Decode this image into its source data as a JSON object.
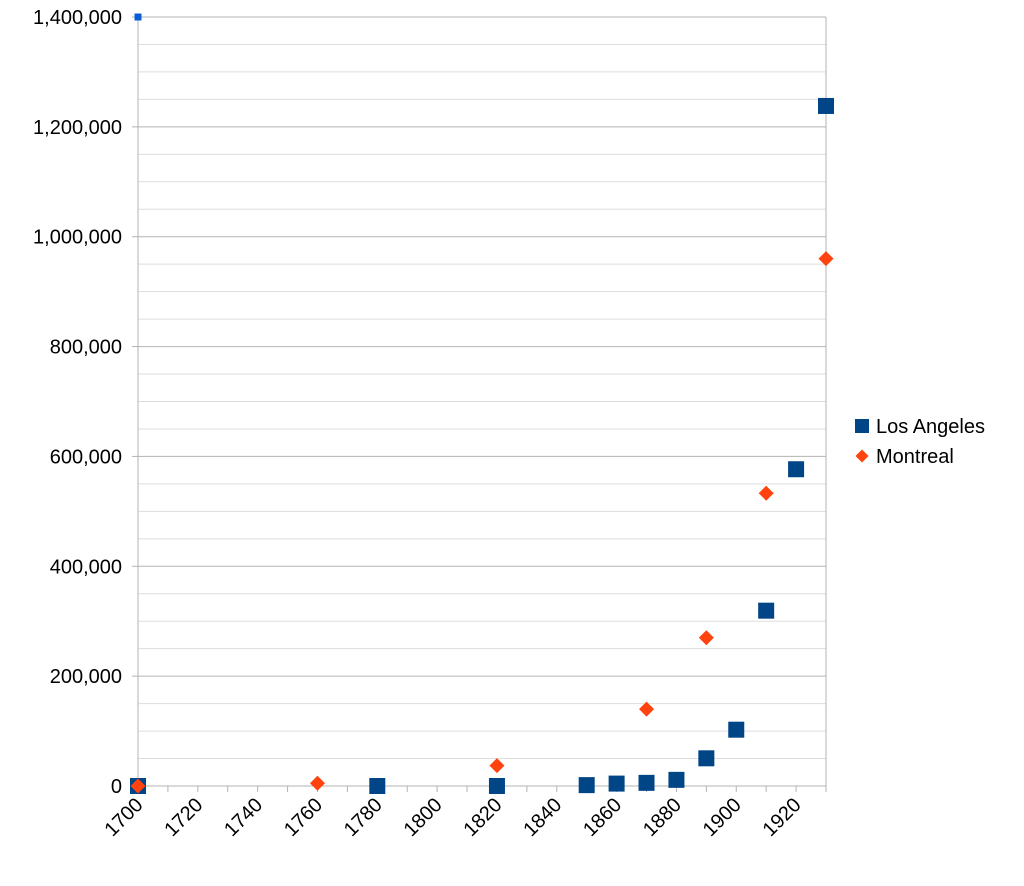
{
  "chart_data": {
    "type": "scatter",
    "title": "",
    "xlabel": "",
    "ylabel": "",
    "xlim": [
      1700,
      1930
    ],
    "ylim": [
      0,
      1400000
    ],
    "x_ticks": [
      1700,
      1720,
      1740,
      1760,
      1780,
      1800,
      1820,
      1840,
      1860,
      1880,
      1900,
      1920
    ],
    "x_tick_labels": [
      "1700",
      "1720",
      "1740",
      "1760",
      "1780",
      "1800",
      "1820",
      "1840",
      "1860",
      "1880",
      "1900",
      "1920"
    ],
    "y_ticks": [
      0,
      200000,
      400000,
      600000,
      800000,
      1000000,
      1200000,
      1400000
    ],
    "y_tick_labels": [
      "0",
      "200,000",
      "400,000",
      "600,000",
      "800,000",
      "1,000,000",
      "1,200,000",
      "1,400,000"
    ],
    "grid": true,
    "legend_position": "right",
    "series": [
      {
        "name": "Los Angeles",
        "marker": "square",
        "color": "#004586",
        "points": [
          [
            1700,
            0
          ],
          [
            1780,
            0
          ],
          [
            1820,
            0
          ],
          [
            1850,
            1610
          ],
          [
            1860,
            4385
          ],
          [
            1870,
            5728
          ],
          [
            1880,
            11183
          ],
          [
            1890,
            50395
          ],
          [
            1900,
            102479
          ],
          [
            1910,
            319198
          ],
          [
            1920,
            576673
          ],
          [
            1930,
            1238048
          ]
        ]
      },
      {
        "name": "Montreal",
        "marker": "diamond",
        "color": "#ff420e",
        "points": [
          [
            1700,
            0
          ],
          [
            1760,
            5000
          ],
          [
            1820,
            37000
          ],
          [
            1870,
            140000
          ],
          [
            1890,
            270000
          ],
          [
            1910,
            533000
          ],
          [
            1930,
            960000
          ]
        ]
      }
    ]
  }
}
